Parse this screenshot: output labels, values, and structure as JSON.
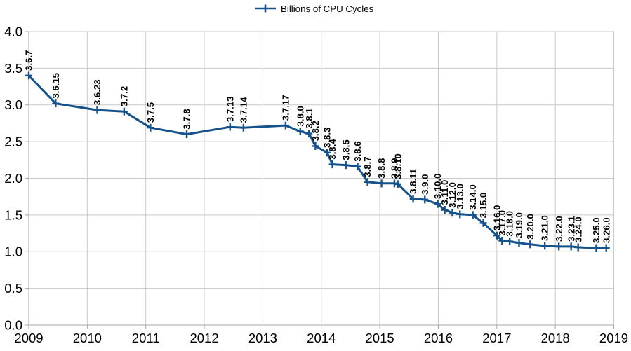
{
  "colors": {
    "line": "#15518b",
    "grid": "#c9c9c9",
    "axis": "#a6a6a6",
    "text": "#000000",
    "background": "#ffffff"
  },
  "legend": {
    "label": "Billions of CPU Cycles"
  },
  "chart_data": {
    "type": "line",
    "title": "",
    "xlabel": "",
    "ylabel": "",
    "legend_position": "top-center",
    "grid": true,
    "xlim": [
      2009,
      2019
    ],
    "ylim": [
      0.0,
      4.0
    ],
    "x_ticks": [
      2009,
      2010,
      2011,
      2012,
      2013,
      2014,
      2015,
      2016,
      2017,
      2018,
      2019
    ],
    "y_ticks": [
      0.0,
      0.5,
      1.0,
      1.5,
      2.0,
      2.5,
      3.0,
      3.5,
      4.0
    ],
    "series": [
      {
        "name": "Billions of CPU Cycles",
        "color": "#15518b",
        "marker": "plus",
        "points": [
          {
            "label": "3.6.7",
            "x": 2009.0,
            "y": 3.4
          },
          {
            "label": "3.6.15",
            "x": 2009.46,
            "y": 3.02
          },
          {
            "label": "3.6.23",
            "x": 2010.17,
            "y": 2.93
          },
          {
            "label": "3.7.2",
            "x": 2010.63,
            "y": 2.91
          },
          {
            "label": "3.7.5",
            "x": 2011.08,
            "y": 2.69
          },
          {
            "label": "3.7.8",
            "x": 2011.7,
            "y": 2.6
          },
          {
            "label": "3.7.13",
            "x": 2012.44,
            "y": 2.7
          },
          {
            "label": "3.7.14",
            "x": 2012.67,
            "y": 2.69
          },
          {
            "label": "3.7.17",
            "x": 2013.39,
            "y": 2.72
          },
          {
            "label": "3.8.0",
            "x": 2013.64,
            "y": 2.64
          },
          {
            "label": "3.8.1",
            "x": 2013.79,
            "y": 2.61
          },
          {
            "label": "3.8.2",
            "x": 2013.9,
            "y": 2.44
          },
          {
            "label": "3.8.3",
            "x": 2014.1,
            "y": 2.35
          },
          {
            "label": "3.8.4",
            "x": 2014.19,
            "y": 2.19
          },
          {
            "label": "3.8.5",
            "x": 2014.42,
            "y": 2.18
          },
          {
            "label": "3.8.6",
            "x": 2014.62,
            "y": 2.16
          },
          {
            "label": "3.8.7",
            "x": 2014.79,
            "y": 1.95
          },
          {
            "label": "3.8.8",
            "x": 2015.03,
            "y": 1.93
          },
          {
            "label": "3.8.9",
            "x": 2015.25,
            "y": 1.93
          },
          {
            "label": "3.8.10",
            "x": 2015.31,
            "y": 1.92
          },
          {
            "label": "3.8.11",
            "x": 2015.57,
            "y": 1.72
          },
          {
            "label": "3.9.0",
            "x": 2015.77,
            "y": 1.71
          },
          {
            "label": "3.10.0",
            "x": 2015.99,
            "y": 1.65
          },
          {
            "label": "3.11.0",
            "x": 2016.11,
            "y": 1.57
          },
          {
            "label": "3.12.0",
            "x": 2016.24,
            "y": 1.53
          },
          {
            "label": "3.13.0",
            "x": 2016.37,
            "y": 1.51
          },
          {
            "label": "3.14.0",
            "x": 2016.59,
            "y": 1.5
          },
          {
            "label": "3.15.0",
            "x": 2016.77,
            "y": 1.39
          },
          {
            "label": "3.16.0",
            "x": 2017.0,
            "y": 1.22
          },
          {
            "label": "3.17.0",
            "x": 2017.09,
            "y": 1.15
          },
          {
            "label": "3.18.0",
            "x": 2017.22,
            "y": 1.14
          },
          {
            "label": "3.19.0",
            "x": 2017.38,
            "y": 1.12
          },
          {
            "label": "3.20.0",
            "x": 2017.57,
            "y": 1.1
          },
          {
            "label": "3.21.0",
            "x": 2017.82,
            "y": 1.08
          },
          {
            "label": "3.22.0",
            "x": 2018.06,
            "y": 1.07
          },
          {
            "label": "3.23.1",
            "x": 2018.27,
            "y": 1.07
          },
          {
            "label": "3.24.0",
            "x": 2018.39,
            "y": 1.06
          },
          {
            "label": "3.25.0",
            "x": 2018.7,
            "y": 1.05
          },
          {
            "label": "3.26.0",
            "x": 2018.87,
            "y": 1.05
          }
        ]
      }
    ]
  }
}
